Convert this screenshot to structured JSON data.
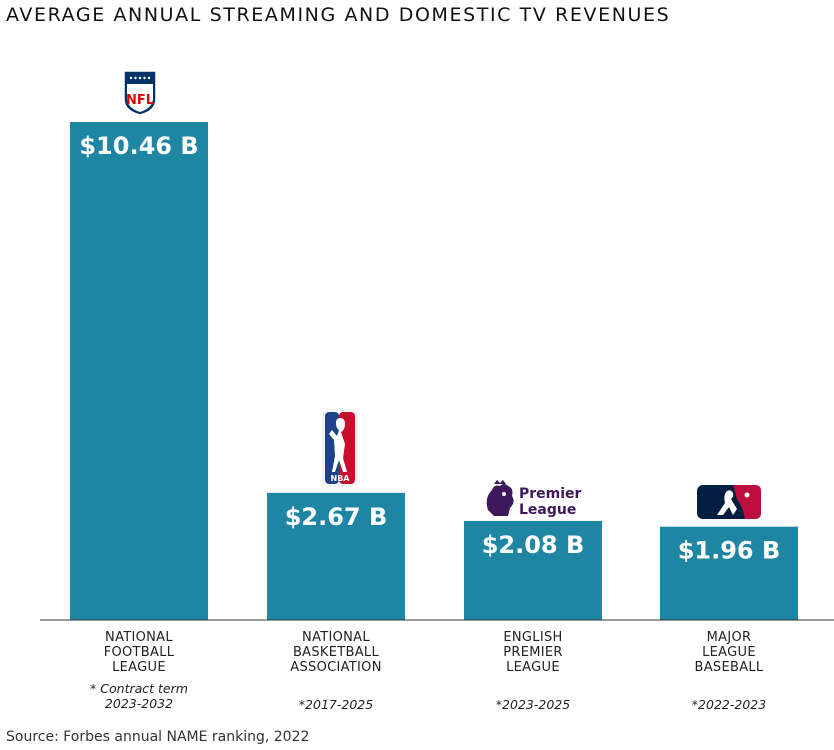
{
  "title": "AVERAGE ANNUAL STREAMING AND DOMESTIC TV REVENUES",
  "source": "Source: Forbes annual NAME ranking, 2022",
  "colors": {
    "bar": "#1e85a3",
    "axis": "#333333"
  },
  "chart_data": {
    "type": "bar",
    "title": "AVERAGE ANNUAL STREAMING AND DOMESTIC TV REVENUES",
    "xlabel": "",
    "ylabel": "",
    "ylim": [
      0,
      10.46
    ],
    "grid": false,
    "categories": [
      [
        "NATIONAL",
        "FOOTBALL",
        "LEAGUE"
      ],
      [
        "NATIONAL",
        "BASKETBALL",
        "ASSOCIATION"
      ],
      [
        "ENGLISH",
        "PREMIER",
        "LEAGUE"
      ],
      [
        "MAJOR",
        "LEAGUE",
        "BASEBALL"
      ]
    ],
    "values": [
      10.46,
      2.67,
      2.08,
      1.96
    ],
    "data_labels": [
      "$10.46 B",
      "$2.67 B",
      "$2.08 B",
      "$1.96 B"
    ],
    "notes": [
      [
        "* Contract term",
        "2023-2032"
      ],
      [
        "*2017-2025"
      ],
      [
        "*2023-2025"
      ],
      [
        "*2022-2023"
      ]
    ],
    "logos": [
      "nfl-logo",
      "nba-logo",
      "premier-league-logo",
      "mlb-logo"
    ],
    "logo_text": {
      "nfl": "NFL",
      "nba": "NBA",
      "pl_line1": "Premier",
      "pl_line2": "League"
    }
  }
}
